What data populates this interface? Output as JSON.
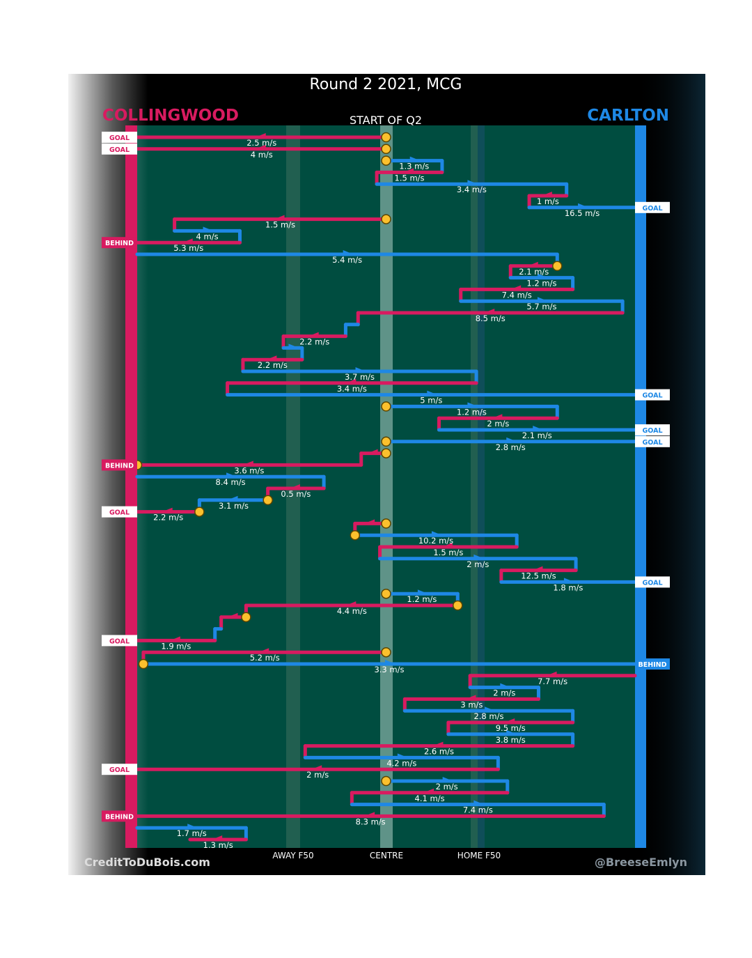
{
  "chart_data": {
    "type": "line",
    "title": "Round 2 2021, MCG",
    "subtitle": "START OF Q2",
    "teams": {
      "home": {
        "name": "COLLINGWOOD",
        "color": "#d81b60"
      },
      "away": {
        "name": "CARLTON",
        "color": "#1e88e5"
      }
    },
    "x_axis_labels": [
      "AWAY F50",
      "CENTRE",
      "HOME F50"
    ],
    "x_range": [
      -80,
      80
    ],
    "credits": {
      "left": "CreditToDuBois.com",
      "right": "@BreeseEmlyn"
    },
    "marker_color": "#fbc02d",
    "field_color": "#004d40",
    "possessions": [
      {
        "team": "home",
        "x1": 0,
        "x2": -80,
        "speed": "2.5 m/s",
        "start_marker": true,
        "end_label": "GOAL"
      },
      {
        "team": "home",
        "x1": 0,
        "x2": -80,
        "speed": "4 m/s",
        "start_marker": true,
        "end_label": "GOAL"
      },
      {
        "team": "away",
        "x1": 0,
        "x2": 18,
        "speed": "1.3 m/s",
        "start_marker": true
      },
      {
        "team": "home",
        "x1": 18,
        "x2": -3,
        "speed": "1.5 m/s"
      },
      {
        "team": "away",
        "x1": -3,
        "x2": 58,
        "speed": "3.4 m/s"
      },
      {
        "team": "home",
        "x1": 58,
        "x2": 46,
        "speed": "1 m/s"
      },
      {
        "team": "away",
        "x1": 46,
        "x2": 80,
        "speed": "16.5 m/s",
        "end_label": "GOAL"
      },
      {
        "team": "home",
        "x1": 0,
        "x2": -68,
        "speed": "1.5 m/s",
        "start_marker": true
      },
      {
        "team": "away",
        "x1": -68,
        "x2": -47,
        "speed": "4 m/s"
      },
      {
        "team": "home",
        "x1": -47,
        "x2": -80,
        "speed": "5.3 m/s",
        "end_label": "BEHIND"
      },
      {
        "team": "away",
        "x1": -80,
        "x2": 55,
        "speed": "5.4 m/s"
      },
      {
        "team": "home",
        "x1": 55,
        "x2": 40,
        "speed": "2.1 m/s",
        "start_marker": true
      },
      {
        "team": "away",
        "x1": 40,
        "x2": 60,
        "speed": "1.2 m/s"
      },
      {
        "team": "home",
        "x1": 60,
        "x2": 24,
        "speed": "7.4 m/s"
      },
      {
        "team": "away",
        "x1": 24,
        "x2": 76,
        "speed": "5.7 m/s"
      },
      {
        "team": "home",
        "x1": 76,
        "x2": -9,
        "speed": "8.5 m/s"
      },
      {
        "team": "away",
        "x1": -9,
        "x2": -13,
        "speed": ""
      },
      {
        "team": "home",
        "x1": -13,
        "x2": -33,
        "speed": "2.2 m/s"
      },
      {
        "team": "away",
        "x1": -33,
        "x2": -27,
        "speed": ""
      },
      {
        "team": "home",
        "x1": -27,
        "x2": -46,
        "speed": "2.2 m/s"
      },
      {
        "team": "away",
        "x1": -46,
        "x2": 29,
        "speed": "3.7 m/s"
      },
      {
        "team": "home",
        "x1": 29,
        "x2": -51,
        "speed": "3.4 m/s"
      },
      {
        "team": "away",
        "x1": -51,
        "x2": 80,
        "speed": "5 m/s",
        "end_label": "GOAL"
      },
      {
        "team": "away",
        "x1": 0,
        "x2": 55,
        "speed": "1.2 m/s",
        "start_marker": true
      },
      {
        "team": "home",
        "x1": 55,
        "x2": 17,
        "speed": "2 m/s"
      },
      {
        "team": "away",
        "x1": 17,
        "x2": 80,
        "speed": "2.1 m/s",
        "end_label": "GOAL"
      },
      {
        "team": "away",
        "x1": 0,
        "x2": 80,
        "speed": "2.8 m/s",
        "start_marker": true,
        "end_label": "GOAL"
      },
      {
        "team": "home",
        "x1": 0,
        "x2": -8,
        "speed": "",
        "start_marker": true
      },
      {
        "team": "home",
        "x1": -8,
        "x2": -80,
        "speed": "3.6 m/s",
        "end_label": "BEHIND",
        "end_marker": true
      },
      {
        "team": "away",
        "x1": -80,
        "x2": -20,
        "speed": "8.4 m/s"
      },
      {
        "team": "home",
        "x1": -20,
        "x2": -38,
        "speed": "0.5 m/s"
      },
      {
        "team": "away",
        "x1": -38,
        "x2": -60,
        "speed": "3.1 m/s",
        "start_marker": true
      },
      {
        "team": "home",
        "x1": -60,
        "x2": -80,
        "speed": "2.2 m/s",
        "end_label": "GOAL",
        "start_marker": true
      },
      {
        "team": "home",
        "x1": 0,
        "x2": -10,
        "speed": "",
        "start_marker": true
      },
      {
        "team": "away",
        "x1": -10,
        "x2": 42,
        "speed": "10.2 m/s",
        "start_marker": true
      },
      {
        "team": "home",
        "x1": 42,
        "x2": -2,
        "speed": "1.5 m/s"
      },
      {
        "team": "away",
        "x1": -2,
        "x2": 61,
        "speed": "2 m/s"
      },
      {
        "team": "home",
        "x1": 61,
        "x2": 37,
        "speed": "12.5 m/s"
      },
      {
        "team": "away",
        "x1": 37,
        "x2": 80,
        "speed": "1.8 m/s",
        "end_label": "GOAL"
      },
      {
        "team": "away",
        "x1": 0,
        "x2": 23,
        "speed": "1.2 m/s",
        "start_marker": true
      },
      {
        "team": "home",
        "x1": 23,
        "x2": -45,
        "speed": "4.4 m/s",
        "start_marker": true
      },
      {
        "team": "home",
        "x1": -45,
        "x2": -53,
        "speed": "",
        "start_marker": true
      },
      {
        "team": "away",
        "x1": -53,
        "x2": -55,
        "speed": ""
      },
      {
        "team": "home",
        "x1": -55,
        "x2": -80,
        "speed": "1.9 m/s",
        "end_label": "GOAL"
      },
      {
        "team": "home",
        "x1": 0,
        "x2": -78,
        "speed": "5.2 m/s",
        "start_marker": true
      },
      {
        "team": "away",
        "x1": -78,
        "x2": 80,
        "speed": "3.3 m/s",
        "start_marker": true,
        "end_label": "BEHIND"
      },
      {
        "team": "home",
        "x1": 80,
        "x2": 27,
        "speed": "7.7 m/s"
      },
      {
        "team": "away",
        "x1": 27,
        "x2": 49,
        "speed": "2 m/s"
      },
      {
        "team": "home",
        "x1": 49,
        "x2": 6,
        "speed": "3 m/s"
      },
      {
        "team": "away",
        "x1": 6,
        "x2": 60,
        "speed": "2.8 m/s"
      },
      {
        "team": "home",
        "x1": 60,
        "x2": 20,
        "speed": "9.5 m/s"
      },
      {
        "team": "away",
        "x1": 20,
        "x2": 60,
        "speed": "3.8 m/s"
      },
      {
        "team": "home",
        "x1": 60,
        "x2": -26,
        "speed": "2.6 m/s"
      },
      {
        "team": "away",
        "x1": -26,
        "x2": 36,
        "speed": "4.2 m/s"
      },
      {
        "team": "home",
        "x1": 36,
        "x2": -80,
        "speed": "2 m/s",
        "end_label": "GOAL"
      },
      {
        "team": "away",
        "x1": 0,
        "x2": 39,
        "speed": "2 m/s",
        "start_marker": true
      },
      {
        "team": "home",
        "x1": 39,
        "x2": -11,
        "speed": "4.1 m/s"
      },
      {
        "team": "away",
        "x1": -11,
        "x2": 70,
        "speed": "7.4 m/s"
      },
      {
        "team": "home",
        "x1": 70,
        "x2": -80,
        "speed": "8.3 m/s",
        "end_label": "BEHIND"
      },
      {
        "team": "away",
        "x1": -80,
        "x2": -45,
        "speed": "1.7 m/s"
      },
      {
        "team": "home",
        "x1": -45,
        "x2": -63,
        "speed": "1.3 m/s"
      }
    ]
  }
}
